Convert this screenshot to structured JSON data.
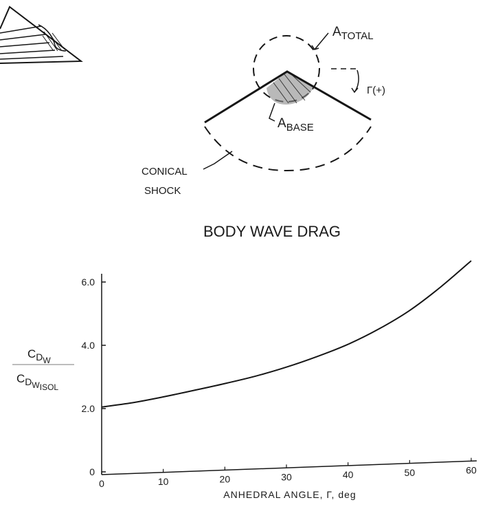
{
  "diagram": {
    "total_area_label": {
      "main": "A",
      "sub": "TOTAL"
    },
    "base_area_label": {
      "main": "A",
      "sub": "BASE"
    },
    "angle_label": "Γ(+)",
    "shock_label_line1": "CONICAL",
    "shock_label_line2": "SHOCK"
  },
  "chart_data": {
    "type": "line",
    "title": "BODY WAVE DRAG",
    "xlabel": "ANHEDRAL ANGLE, Γ, deg",
    "ylabel": {
      "numerator": {
        "main": "C",
        "sub": "D",
        "subsub": "W"
      },
      "denominator": {
        "main": "C",
        "sub": "D",
        "subsub": "W",
        "subsubsub": "ISOL"
      }
    },
    "xlim": [
      0,
      60
    ],
    "ylim": [
      0,
      6.0
    ],
    "xticks": [
      "0",
      "10",
      "20",
      "30",
      "40",
      "50",
      "60"
    ],
    "yticks": [
      "0",
      "2.0",
      "4.0",
      "6.0"
    ],
    "grid": false,
    "series": [
      {
        "x": [
          0,
          5,
          10,
          15,
          20,
          25,
          30,
          35,
          40,
          45,
          50,
          55,
          60
        ],
        "y": [
          2.05,
          2.15,
          2.3,
          2.47,
          2.65,
          2.85,
          3.1,
          3.4,
          3.75,
          4.2,
          4.75,
          5.45,
          6.25
        ]
      }
    ]
  }
}
